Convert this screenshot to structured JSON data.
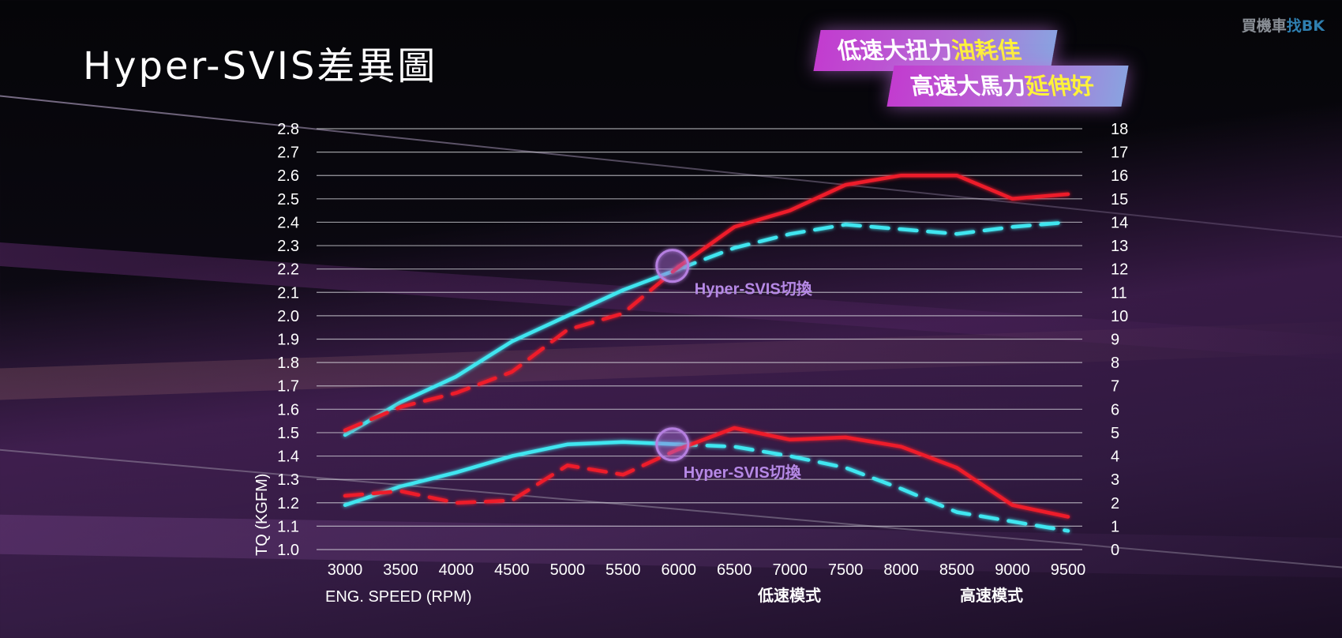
{
  "title": "Hyper-SVIS差異圖",
  "watermark": {
    "main": "買機車",
    "accent": "找BK"
  },
  "badges": [
    {
      "text": "低速大扭力",
      "highlight": "油耗佳"
    },
    {
      "text": "高速大馬力",
      "highlight": "延伸好"
    }
  ],
  "chart_data": {
    "type": "line",
    "title": "Hyper-SVIS差異圖",
    "xlabel": "ENG. SPEED (RPM)",
    "ylabel": "TQ (KGFM)",
    "x": [
      3000,
      3500,
      4000,
      4500,
      5000,
      5500,
      6000,
      6500,
      7000,
      7500,
      8000,
      8500,
      9000,
      9500
    ],
    "ylim": [
      1.0,
      2.8
    ],
    "y_ticks": [
      "1.0",
      "1.1",
      "1.2",
      "1.3",
      "1.4",
      "1.5",
      "1.6",
      "1.7",
      "1.8",
      "1.9",
      "2.0",
      "2.1",
      "2.2",
      "2.3",
      "2.4",
      "2.5",
      "2.6",
      "2.7",
      "2.8"
    ],
    "y2lim": [
      0,
      18
    ],
    "y2_ticks": [
      "0",
      "1",
      "2",
      "3",
      "4",
      "5",
      "6",
      "7",
      "8",
      "9",
      "10",
      "11",
      "12",
      "13",
      "14",
      "15",
      "16",
      "17",
      "18"
    ],
    "x_ticks": [
      "3000",
      "3500",
      "4000",
      "4500",
      "5000",
      "5500",
      "6000",
      "6500",
      "7000",
      "7500",
      "8000",
      "8500",
      "9000",
      "9500"
    ],
    "grid": true,
    "series": [
      {
        "name": "低速模式",
        "metric": "power",
        "axis": "right",
        "color": "#3fe6f0",
        "values": [
          4.9,
          6.3,
          7.4,
          8.9,
          10.0,
          11.1,
          12.0,
          12.9,
          13.5,
          13.9,
          13.7,
          13.5,
          13.8,
          14.0
        ],
        "solid_until": 6000
      },
      {
        "name": "高速模式",
        "metric": "power",
        "axis": "right",
        "color": "#ee1f2a",
        "values": [
          5.1,
          6.1,
          6.7,
          7.6,
          9.4,
          10.1,
          12.1,
          13.8,
          14.5,
          15.6,
          16.0,
          16.0,
          15.0,
          15.2
        ],
        "solid_from": 6000
      },
      {
        "name": "低速模式",
        "metric": "torque",
        "axis": "left",
        "color": "#3fe6f0",
        "values": [
          1.19,
          1.27,
          1.33,
          1.4,
          1.45,
          1.46,
          1.45,
          1.44,
          1.4,
          1.35,
          1.26,
          1.16,
          1.12,
          1.08
        ],
        "solid_until": 6000
      },
      {
        "name": "高速模式",
        "metric": "torque",
        "axis": "left",
        "color": "#ee1f2a",
        "values": [
          1.23,
          1.25,
          1.2,
          1.21,
          1.36,
          1.32,
          1.43,
          1.52,
          1.47,
          1.48,
          1.44,
          1.35,
          1.19,
          1.14
        ],
        "solid_from": 6000
      }
    ],
    "annotations": [
      {
        "text": "Hyper-SVIS切換",
        "x": 6000,
        "axis": "right",
        "y": 12.0
      },
      {
        "text": "Hyper-SVIS切換",
        "x": 6000,
        "axis": "left",
        "y": 1.45
      }
    ],
    "legend": {
      "placement": "bottom-right",
      "items": [
        "低速模式",
        "高速模式"
      ]
    }
  }
}
